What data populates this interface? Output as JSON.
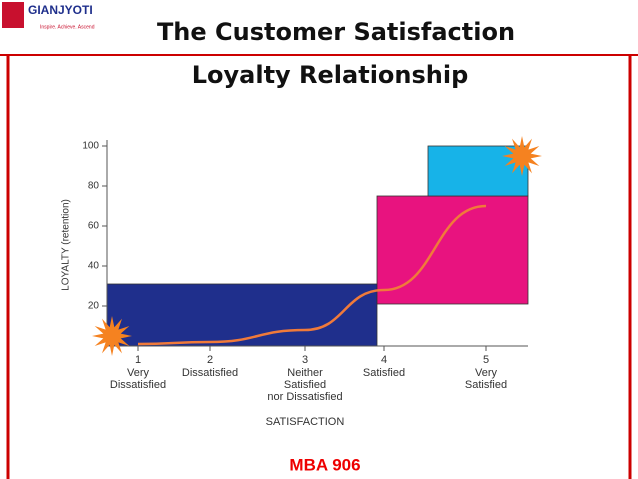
{
  "header": {
    "logo": "GIANJYOTI",
    "tagline": "Inspire. Achieve. Ascend",
    "title_lines": [
      "The Customer Satisfaction",
      "Loyalty Relationship"
    ]
  },
  "chart_data": {
    "type": "box-curve",
    "y_label": "LOYALTY (retention)",
    "x_label": "SATISFACTION",
    "categories": [
      "1",
      "2",
      "3",
      "4",
      "5"
    ],
    "category_labels": [
      [
        "Very",
        "Dissatisfied"
      ],
      [
        "Dissatisfied"
      ],
      [
        "Neither",
        "Satisfied",
        "nor Dissatisfied"
      ],
      [
        "Satisfied"
      ],
      [
        "Very",
        "Satisfied"
      ]
    ],
    "ylim": [
      0,
      100
    ],
    "yticks": [
      20,
      40,
      60,
      80,
      100
    ],
    "boxes": [
      {
        "color": "#1f2f8c",
        "low": 0,
        "high": 31
      },
      {
        "color": "#e8137f",
        "low": 21,
        "high": 75
      },
      {
        "color": "#17b3e8",
        "low": 75,
        "high": 100
      }
    ],
    "series": [
      {
        "color": "#f07a3a",
        "values": [
          1,
          2,
          8,
          28,
          70
        ]
      }
    ]
  },
  "footer": "MBA 906"
}
